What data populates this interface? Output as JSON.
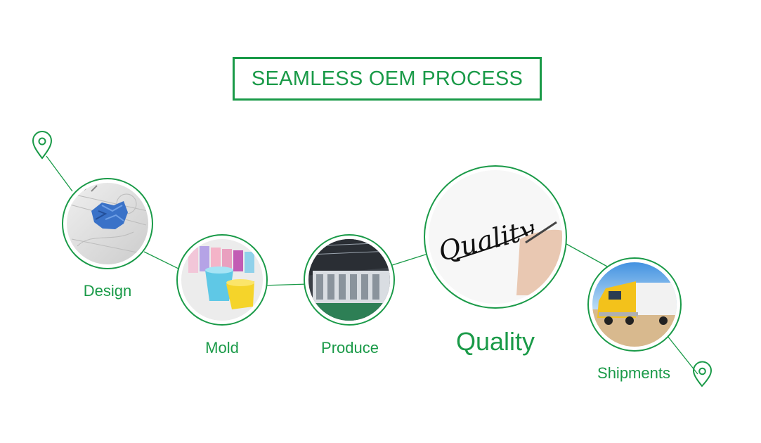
{
  "title": "SEAMLESS OEM PROCESS",
  "accent_color": "#1a9a48",
  "steps": [
    {
      "label": "Design",
      "image": "crumpled-paper-sketch"
    },
    {
      "label": "Mold",
      "image": "plastic-cups"
    },
    {
      "label": "Produce",
      "image": "factory-machine"
    },
    {
      "label": "Quality",
      "image": "quality-handwriting",
      "handwriting": "Quality"
    },
    {
      "label": "Shipments",
      "image": "yellow-truck"
    }
  ],
  "start_marker": "location-pin-icon",
  "end_marker": "location-pin-icon"
}
